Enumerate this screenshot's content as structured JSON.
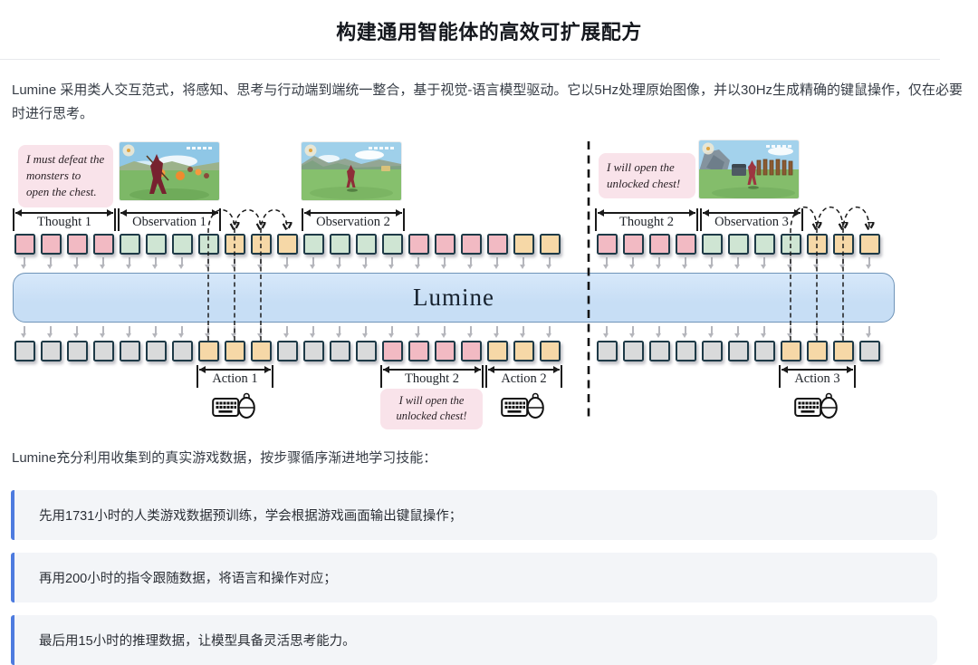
{
  "page": {
    "title": "构建通用智能体的高效可扩展配方",
    "intro": "Lumine 采用类人交互范式，将感知、思考与行动端到端统一整合，基于视觉-语言模型驱动。它以5Hz处理原始图像，并以30Hz生成精确的键鼠操作，仅在必要时进行思考。",
    "section_lead": "Lumine充分利用收集到的真实游戏数据，按步骤循序渐进地学习技能：",
    "bullets": [
      "先用1731小时的人类游戏数据预训练，学会根据游戏画面输出键鼠操作；",
      "再用200小时的指令跟随数据，将语言和操作对应；",
      "最后用15小时的推理数据，让模型具备灵活思考能力。"
    ]
  },
  "diagram": {
    "model_label": "Lumine",
    "thought_bubble_1": "I must defeat the monsters to open the chest.",
    "thought_bubble_2": "I will open the unlocked chest!",
    "bottom_thought_bubble": "I will open the unlocked chest!",
    "labels": {
      "thought1": "Thought 1",
      "observation1": "Observation 1",
      "observation2": "Observation 2",
      "thought2_top": "Thought 2",
      "observation3": "Observation 3",
      "action1": "Action 1",
      "thought2_bottom": "Thought 2",
      "action2": "Action 2",
      "action3": "Action 3"
    },
    "icons": {
      "action_output_icons": [
        "keyboard-icon",
        "mouse-icon"
      ],
      "flow_icon": "down-arrow-icon"
    },
    "screenshots": [
      {
        "name": "game-screenshot-combat",
        "caption_area": "Observation 1"
      },
      {
        "name": "game-screenshot-meadow",
        "caption_area": "Observation 2"
      },
      {
        "name": "game-screenshot-chest",
        "caption_area": "Observation 3"
      }
    ],
    "token_colors": {
      "thought": "#f2bac3",
      "observation": "#cfe5d3",
      "action": "#f6d8a7",
      "output": "#d9dadb",
      "border": "#1e3a47"
    },
    "accent_colors": {
      "model_bar": "#c7def5",
      "model_bar_border": "#6f94b8",
      "bubble_bg": "#f9e3ea",
      "callout_accent": "#4d7bdf"
    },
    "top_row_segments": [
      {
        "type": "thought",
        "count": 4
      },
      {
        "type": "observation",
        "count": 4
      },
      {
        "type": "action",
        "count": 3
      },
      {
        "type": "observation",
        "count": 4
      },
      {
        "type": "thought",
        "count": 4
      },
      {
        "type": "action",
        "count": 2
      },
      {
        "type": "thought",
        "count": 4
      },
      {
        "type": "observation",
        "count": 4
      },
      {
        "type": "action",
        "count": 3
      }
    ],
    "bottom_row_segments": [
      {
        "type": "output",
        "count": 7
      },
      {
        "type": "action",
        "count": 3
      },
      {
        "type": "output",
        "count": 4
      },
      {
        "type": "thought",
        "count": 4
      },
      {
        "type": "action",
        "count": 3
      },
      {
        "type": "output",
        "count": 7
      },
      {
        "type": "action",
        "count": 3
      },
      {
        "type": "output",
        "count": 1
      }
    ]
  }
}
